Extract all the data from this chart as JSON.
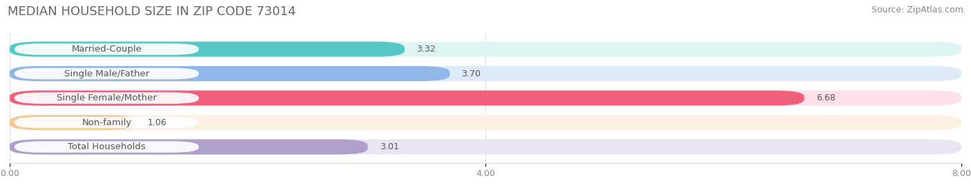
{
  "title": "MEDIAN HOUSEHOLD SIZE IN ZIP CODE 73014",
  "source": "Source: ZipAtlas.com",
  "categories": [
    "Married-Couple",
    "Single Male/Father",
    "Single Female/Mother",
    "Non-family",
    "Total Households"
  ],
  "values": [
    3.32,
    3.7,
    6.68,
    1.06,
    3.01
  ],
  "bar_colors": [
    "#56c8c8",
    "#8fb8e8",
    "#f0607a",
    "#f5c896",
    "#b09fcc"
  ],
  "bar_bg_colors": [
    "#ddf4f4",
    "#ddeaf8",
    "#fde0e8",
    "#fef0e0",
    "#eae4f5"
  ],
  "xlim": [
    0,
    8.0
  ],
  "xticks": [
    0.0,
    4.0,
    8.0
  ],
  "xtick_labels": [
    "0.00",
    "4.00",
    "8.00"
  ],
  "title_fontsize": 13,
  "source_fontsize": 9,
  "label_fontsize": 9.5,
  "value_fontsize": 9,
  "background_color": "#ffffff"
}
